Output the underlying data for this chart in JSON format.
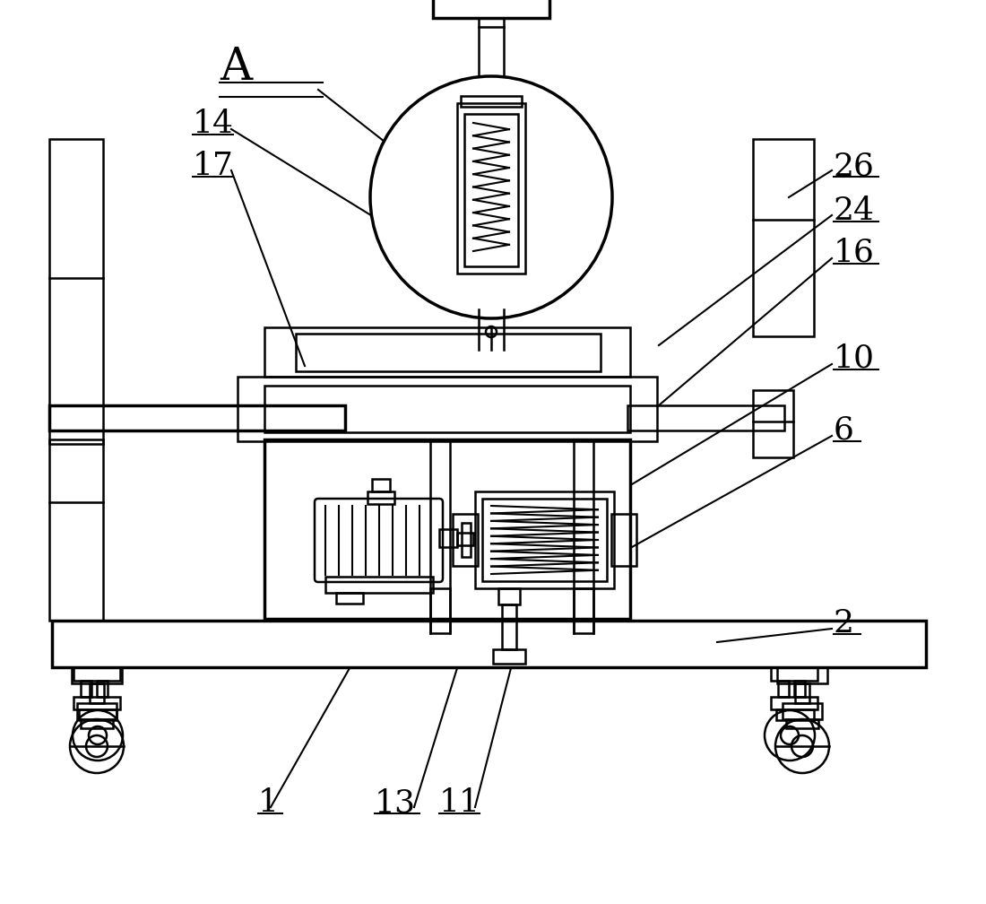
{
  "bg_color": "#ffffff",
  "line_color": "#000000",
  "lw": 1.8,
  "lw_thick": 2.5,
  "figsize": [
    11.0,
    10.08
  ],
  "dpi": 100
}
